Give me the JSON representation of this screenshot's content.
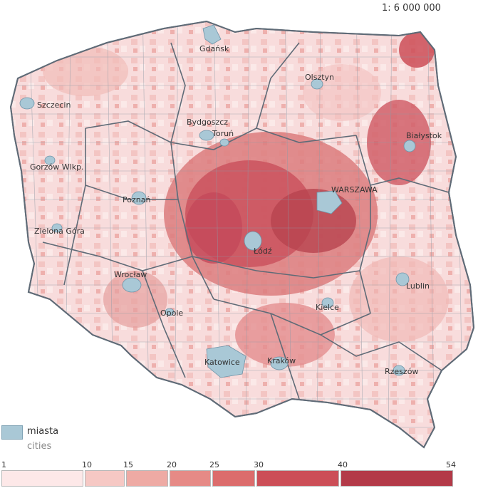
{
  "scale_label": "1: 6 000 000",
  "cities": [
    {
      "name": "Gdańsk",
      "upper": false
    },
    {
      "name": "Olsztyn",
      "upper": false
    },
    {
      "name": "Szczecin",
      "upper": false
    },
    {
      "name": "Białystok",
      "upper": false
    },
    {
      "name": "Bydgoszcz",
      "upper": false
    },
    {
      "name": "Toruń",
      "upper": false
    },
    {
      "name": "Gorzów Wlkp.",
      "upper": false
    },
    {
      "name": "WARSZAWA",
      "upper": true
    },
    {
      "name": "Poznań",
      "upper": false
    },
    {
      "name": "Zielona Góra",
      "upper": false
    },
    {
      "name": "Łódź",
      "upper": false
    },
    {
      "name": "Wrocław",
      "upper": false
    },
    {
      "name": "Lublin",
      "upper": false
    },
    {
      "name": "Kielce",
      "upper": false
    },
    {
      "name": "Opole",
      "upper": false
    },
    {
      "name": "Katowice",
      "upper": false
    },
    {
      "name": "Kraków",
      "upper": false
    },
    {
      "name": "Rzeszów",
      "upper": false
    }
  ],
  "legend": {
    "cities_label": "miasta",
    "cities_label_en": "cities",
    "cities_color": "#a9c8d6"
  },
  "classes": {
    "breaks": [
      "1",
      "10",
      "15",
      "20",
      "25",
      "30",
      "40",
      "54"
    ],
    "colors": [
      "#fde8e8",
      "#f6c8c4",
      "#eeaaa4",
      "#e68a86",
      "#dc6c6c",
      "#cc4e57",
      "#b33a48"
    ]
  }
}
